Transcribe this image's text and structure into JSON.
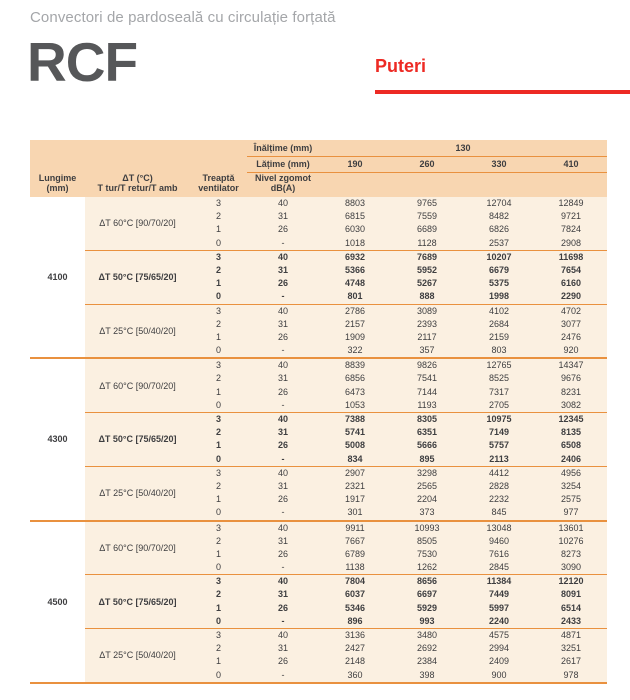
{
  "page": {
    "subtitle": "Convectori de pardoseală cu circulație forțată",
    "product_code": "RCF",
    "section_title": "Puteri"
  },
  "colors": {
    "accent_red": "#ED2A24",
    "line_orange": "#E9913F",
    "header_bg": "#F8D6B1",
    "body_bg": "#FBF0E1",
    "text_dark": "#3E3E40",
    "subtitle_gray": "#A4A6A9",
    "product_gray": "#565759"
  },
  "table": {
    "header": {
      "col_lungime": [
        "Lungime",
        "(mm)"
      ],
      "col_dt": [
        "ΔT (°C)",
        "T tur/T retur/T amb"
      ],
      "col_treapta": [
        "Treaptă",
        "ventilator"
      ],
      "col_zgomot": [
        "Nivel zgomot",
        "dB(A)"
      ],
      "inaltime_label": "Înălțime (mm)",
      "inaltime_value": "130",
      "latime_label": "Lățime (mm)",
      "width_values": [
        "190",
        "260",
        "330",
        "410"
      ]
    },
    "groups": [
      {
        "lungime": "4100",
        "subgroups": [
          {
            "dt": "ΔT 60°C [90/70/20]",
            "bold": false,
            "rows": [
              {
                "step": "3",
                "db": "40",
                "values": [
                  "8803",
                  "9765",
                  "12704",
                  "12849"
                ]
              },
              {
                "step": "2",
                "db": "31",
                "values": [
                  "6815",
                  "7559",
                  "8482",
                  "9721"
                ]
              },
              {
                "step": "1",
                "db": "26",
                "values": [
                  "6030",
                  "6689",
                  "6826",
                  "7824"
                ]
              },
              {
                "step": "0",
                "db": "-",
                "values": [
                  "1018",
                  "1128",
                  "2537",
                  "2908"
                ]
              }
            ]
          },
          {
            "dt": "ΔT 50°C [75/65/20]",
            "bold": true,
            "rows": [
              {
                "step": "3",
                "db": "40",
                "values": [
                  "6932",
                  "7689",
                  "10207",
                  "11698"
                ]
              },
              {
                "step": "2",
                "db": "31",
                "values": [
                  "5366",
                  "5952",
                  "6679",
                  "7654"
                ]
              },
              {
                "step": "1",
                "db": "26",
                "values": [
                  "4748",
                  "5267",
                  "5375",
                  "6160"
                ]
              },
              {
                "step": "0",
                "db": "-",
                "values": [
                  "801",
                  "888",
                  "1998",
                  "2290"
                ]
              }
            ]
          },
          {
            "dt": "ΔT 25°C [50/40/20]",
            "bold": false,
            "rows": [
              {
                "step": "3",
                "db": "40",
                "values": [
                  "2786",
                  "3089",
                  "4102",
                  "4702"
                ]
              },
              {
                "step": "2",
                "db": "31",
                "values": [
                  "2157",
                  "2393",
                  "2684",
                  "3077"
                ]
              },
              {
                "step": "1",
                "db": "26",
                "values": [
                  "1909",
                  "2117",
                  "2159",
                  "2476"
                ]
              },
              {
                "step": "0",
                "db": "-",
                "values": [
                  "322",
                  "357",
                  "803",
                  "920"
                ]
              }
            ]
          }
        ]
      },
      {
        "lungime": "4300",
        "subgroups": [
          {
            "dt": "ΔT 60°C [90/70/20]",
            "bold": false,
            "rows": [
              {
                "step": "3",
                "db": "40",
                "values": [
                  "8839",
                  "9826",
                  "12765",
                  "14347"
                ]
              },
              {
                "step": "2",
                "db": "31",
                "values": [
                  "6856",
                  "7541",
                  "8525",
                  "9676"
                ]
              },
              {
                "step": "1",
                "db": "26",
                "values": [
                  "6473",
                  "7144",
                  "7317",
                  "8231"
                ]
              },
              {
                "step": "0",
                "db": "-",
                "values": [
                  "1053",
                  "1193",
                  "2705",
                  "3082"
                ]
              }
            ]
          },
          {
            "dt": "ΔT 50°C [75/65/20]",
            "bold": true,
            "rows": [
              {
                "step": "3",
                "db": "40",
                "values": [
                  "7388",
                  "8305",
                  "10975",
                  "12345"
                ]
              },
              {
                "step": "2",
                "db": "31",
                "values": [
                  "5741",
                  "6351",
                  "7149",
                  "8135"
                ]
              },
              {
                "step": "1",
                "db": "26",
                "values": [
                  "5008",
                  "5666",
                  "5757",
                  "6508"
                ]
              },
              {
                "step": "0",
                "db": "-",
                "values": [
                  "834",
                  "895",
                  "2113",
                  "2406"
                ]
              }
            ]
          },
          {
            "dt": "ΔT 25°C [50/40/20]",
            "bold": false,
            "rows": [
              {
                "step": "3",
                "db": "40",
                "values": [
                  "2907",
                  "3298",
                  "4412",
                  "4956"
                ]
              },
              {
                "step": "2",
                "db": "31",
                "values": [
                  "2321",
                  "2565",
                  "2828",
                  "3254"
                ]
              },
              {
                "step": "1",
                "db": "26",
                "values": [
                  "1917",
                  "2204",
                  "2232",
                  "2575"
                ]
              },
              {
                "step": "0",
                "db": "-",
                "values": [
                  "301",
                  "373",
                  "845",
                  "977"
                ]
              }
            ]
          }
        ]
      },
      {
        "lungime": "4500",
        "subgroups": [
          {
            "dt": "ΔT 60°C [90/70/20]",
            "bold": false,
            "rows": [
              {
                "step": "3",
                "db": "40",
                "values": [
                  "9911",
                  "10993",
                  "13048",
                  "13601"
                ]
              },
              {
                "step": "2",
                "db": "31",
                "values": [
                  "7667",
                  "8505",
                  "9460",
                  "10276"
                ]
              },
              {
                "step": "1",
                "db": "26",
                "values": [
                  "6789",
                  "7530",
                  "7616",
                  "8273"
                ]
              },
              {
                "step": "0",
                "db": "-",
                "values": [
                  "1138",
                  "1262",
                  "2845",
                  "3090"
                ]
              }
            ]
          },
          {
            "dt": "ΔT 50°C [75/65/20]",
            "bold": true,
            "rows": [
              {
                "step": "3",
                "db": "40",
                "values": [
                  "7804",
                  "8656",
                  "11384",
                  "12120"
                ]
              },
              {
                "step": "2",
                "db": "31",
                "values": [
                  "6037",
                  "6697",
                  "7449",
                  "8091"
                ]
              },
              {
                "step": "1",
                "db": "26",
                "values": [
                  "5346",
                  "5929",
                  "5997",
                  "6514"
                ]
              },
              {
                "step": "0",
                "db": "-",
                "values": [
                  "896",
                  "993",
                  "2240",
                  "2433"
                ]
              }
            ]
          },
          {
            "dt": "ΔT 25°C [50/40/20]",
            "bold": false,
            "rows": [
              {
                "step": "3",
                "db": "40",
                "values": [
                  "3136",
                  "3480",
                  "4575",
                  "4871"
                ]
              },
              {
                "step": "2",
                "db": "31",
                "values": [
                  "2427",
                  "2692",
                  "2994",
                  "3251"
                ]
              },
              {
                "step": "1",
                "db": "26",
                "values": [
                  "2148",
                  "2384",
                  "2409",
                  "2617"
                ]
              },
              {
                "step": "0",
                "db": "-",
                "values": [
                  "360",
                  "398",
                  "900",
                  "978"
                ]
              }
            ]
          }
        ]
      }
    ]
  }
}
